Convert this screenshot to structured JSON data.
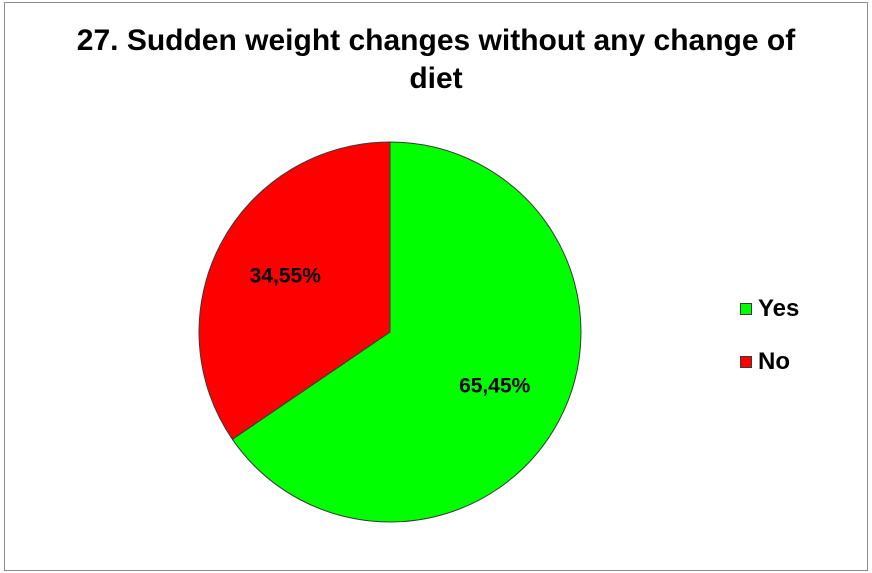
{
  "chart_data": {
    "type": "pie",
    "title_lines": [
      "27. Sudden weight changes without any change of",
      "diet"
    ],
    "categories": [
      "Yes",
      "No"
    ],
    "values": [
      65.45,
      34.55
    ],
    "data_labels": [
      "65,45%",
      "34,55%"
    ],
    "colors": [
      "#00ff00",
      "#ff0000"
    ],
    "start_angle_deg": 0,
    "direction": "clockwise",
    "legend": {
      "position": "right",
      "items": [
        {
          "label": "Yes",
          "color": "#00ff00"
        },
        {
          "label": "No",
          "color": "#ff0000"
        }
      ]
    }
  }
}
